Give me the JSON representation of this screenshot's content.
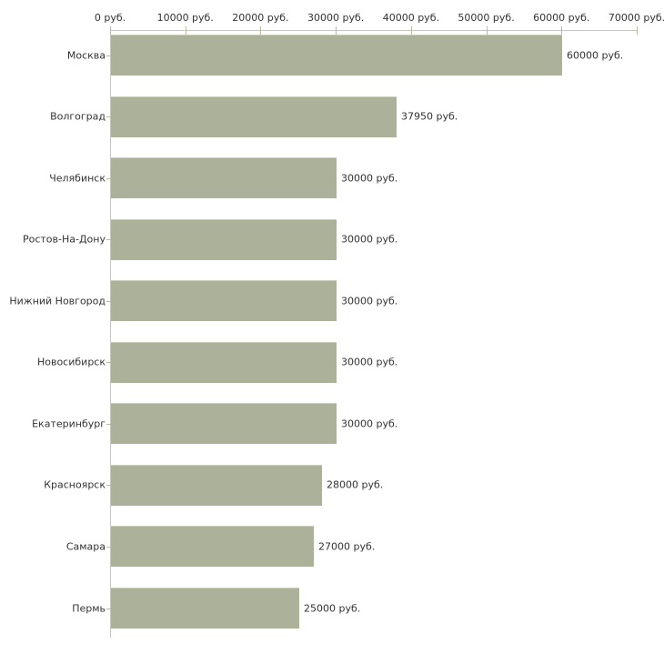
{
  "chart_data": {
    "type": "bar",
    "orientation": "horizontal",
    "title": "",
    "xlabel": "",
    "ylabel": "",
    "unit": "руб.",
    "categories": [
      "Москва",
      "Волгоград",
      "Челябинск",
      "Ростов-На-Дону",
      "Нижний Новгород",
      "Новосибирск",
      "Екатеринбург",
      "Красноярск",
      "Самара",
      "Пермь"
    ],
    "values": [
      60000,
      37950,
      30000,
      30000,
      30000,
      30000,
      30000,
      28000,
      27000,
      25000
    ],
    "value_labels": [
      "60000 руб.",
      "37950 руб.",
      "30000 руб.",
      "30000 руб.",
      "30000 руб.",
      "30000 руб.",
      "30000 руб.",
      "28000 руб.",
      "27000 руб.",
      "25000 руб."
    ],
    "xlim": [
      0,
      70000
    ],
    "x_ticks": [
      0,
      10000,
      20000,
      30000,
      40000,
      50000,
      60000,
      70000
    ],
    "x_tick_labels": [
      "0 руб.",
      "10000 руб.",
      "20000 руб.",
      "30000 руб.",
      "40000 руб.",
      "50000 руб.",
      "60000 руб.",
      "70000 руб."
    ],
    "grid": "off",
    "legend": "none",
    "axis_position": "top",
    "colors": {
      "bar_fill": "#acb299",
      "bar_top_edge": "#c9cfb8",
      "axis_line": "#c6c6c6",
      "tick_mark": "#bcbc98",
      "text": "#333333",
      "background": "#ffffff"
    }
  }
}
